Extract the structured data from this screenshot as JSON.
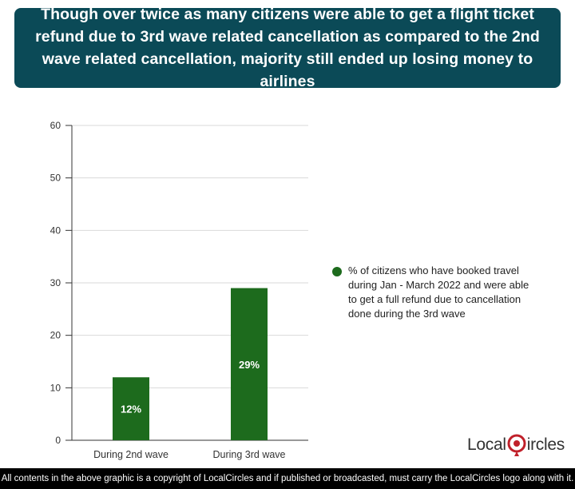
{
  "title": "Though over twice as many citizens were able to get a flight ticket refund due to 3rd wave related cancellation as compared to the 2nd wave related cancellation, majority still ended up losing money to airlines",
  "colors": {
    "banner": "#0b4a57",
    "bar": "#1d6b1d",
    "grid": "#d9d9d9",
    "logo_accent": "#c0202a"
  },
  "chart_data": {
    "type": "bar",
    "categories": [
      "During 2nd wave",
      "During 3rd wave"
    ],
    "series": [
      {
        "name": "% of citizens who have booked travel during Jan - March 2022 and were able to get a full refund due to cancellation done during the 3rd wave",
        "values": [
          12,
          29
        ]
      }
    ],
    "data_labels": [
      "12%",
      "29%"
    ],
    "ylim": [
      0,
      60
    ],
    "yticks": [
      0,
      10,
      20,
      30,
      40,
      50,
      60
    ],
    "grid": true,
    "legend_position": "right",
    "xlabel": "",
    "ylabel": ""
  },
  "logo": {
    "part1": "Local",
    "part2": "ircles"
  },
  "footer": "All contents in the above graphic is a copyright of LocalCircles and if published or broadcasted, must carry the LocalCircles logo along with it."
}
